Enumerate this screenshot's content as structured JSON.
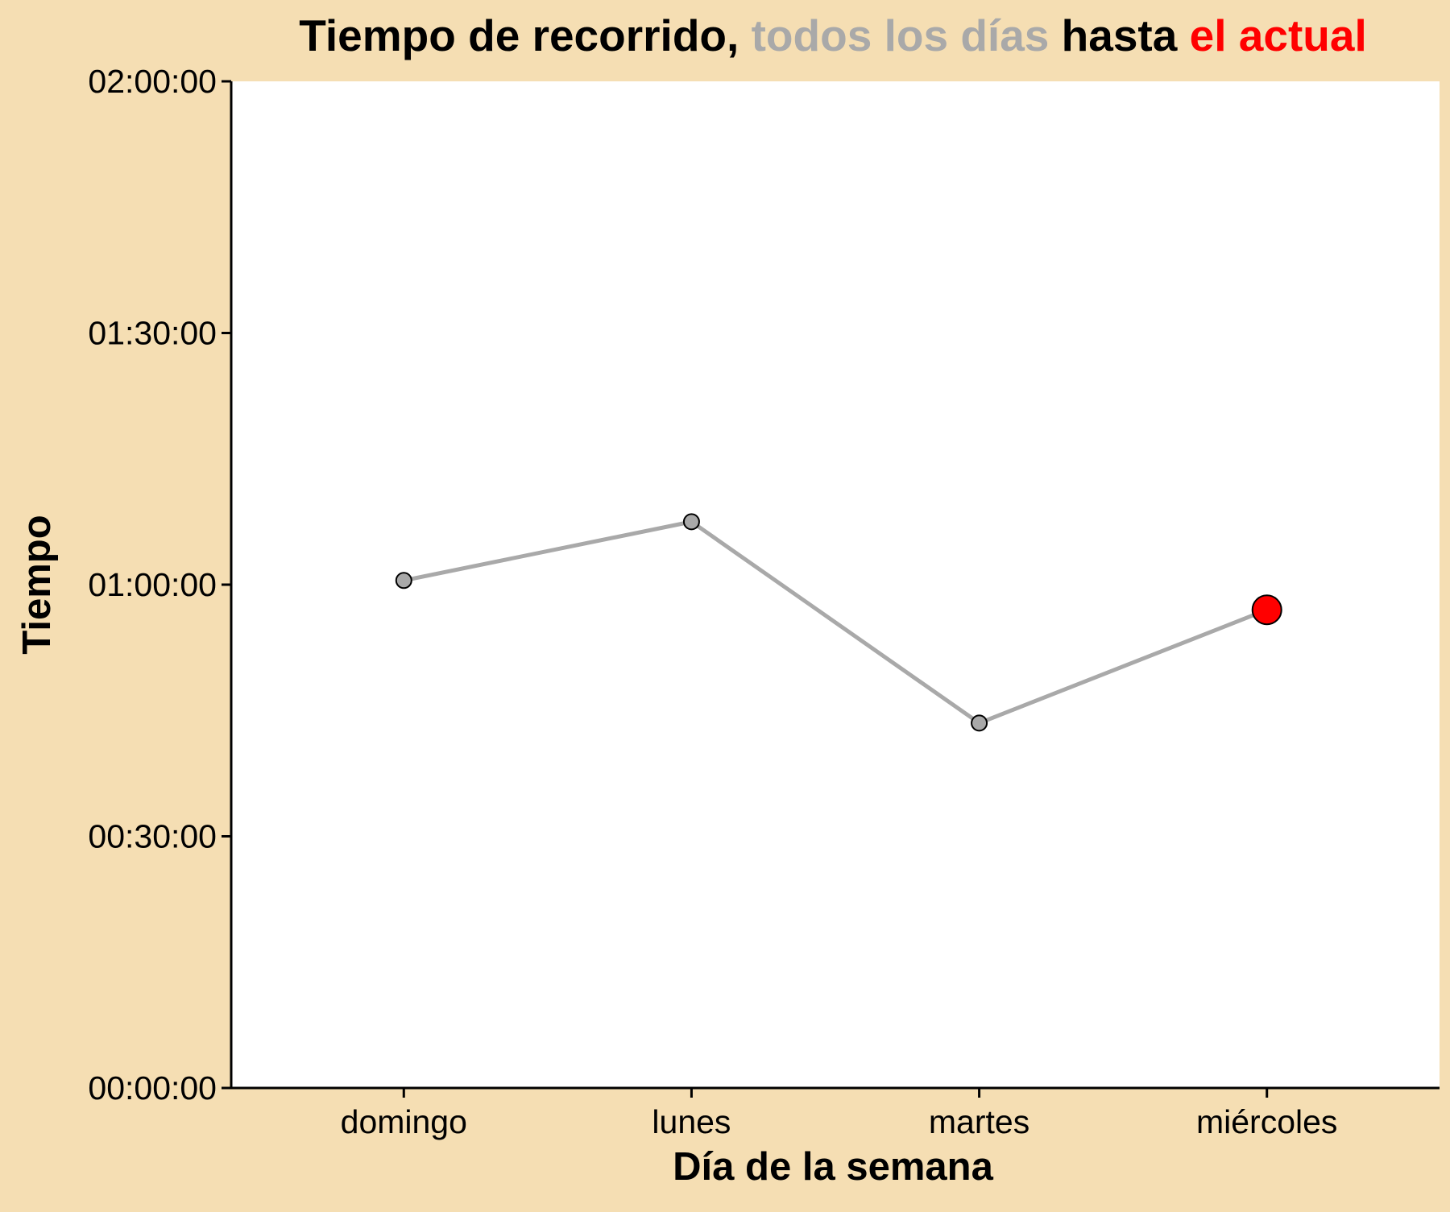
{
  "chart_data": {
    "type": "line",
    "title": {
      "segments": [
        {
          "text": "Tiempo de recorrido, ",
          "color": "#000000"
        },
        {
          "text": "todos los días",
          "color": "#A9A9A9"
        },
        {
          "text": " hasta ",
          "color": "#000000"
        },
        {
          "text": "el actual",
          "color": "#FF0000"
        }
      ]
    },
    "xlabel": "Día de la semana",
    "ylabel": "Tiempo",
    "categories": [
      "domingo",
      "lunes",
      "martes",
      "miércoles"
    ],
    "y_unit": "seconds",
    "ylim": [
      0,
      7200
    ],
    "yticks": [
      0,
      1800,
      3600,
      5400,
      7200
    ],
    "ytick_labels": [
      "00:00:00",
      "00:30:00",
      "01:00:00",
      "01:30:00",
      "02:00:00"
    ],
    "series": [
      {
        "values": [
          3630,
          4050,
          2610,
          3420
        ],
        "line_color": "#A9A9A9",
        "point_fill": "#A9A9A9",
        "highlight_index": 3,
        "highlight_fill": "#FF0000"
      }
    ],
    "colors": {
      "background": "#F5DEB3",
      "panel": "#FFFFFF",
      "axis": "#000000"
    },
    "grid": false,
    "legend": "none"
  }
}
